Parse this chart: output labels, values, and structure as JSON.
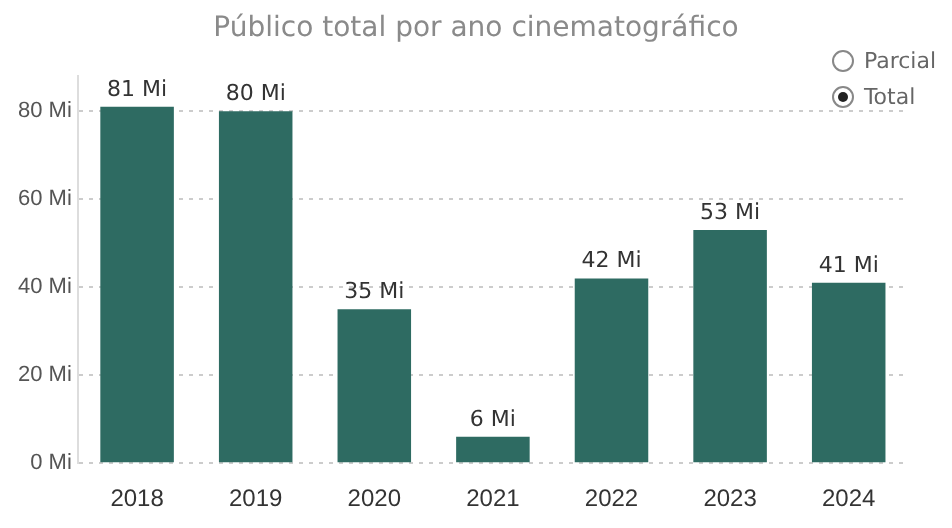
{
  "chart_data": {
    "type": "bar",
    "title": "Público total por ano cinematográfico",
    "categories": [
      "2018",
      "2019",
      "2020",
      "2021",
      "2022",
      "2023",
      "2024"
    ],
    "series": [
      {
        "name": "Total",
        "color": "#2e6b62",
        "values": [
          81,
          80,
          35,
          6,
          42,
          53,
          41
        ],
        "value_labels": [
          "81 Mi",
          "80 Mi",
          "35 Mi",
          "6 Mi",
          "42 Mi",
          "53 Mi",
          "41 Mi"
        ]
      }
    ],
    "yticks": [
      {
        "value": 0,
        "label": "0 Mi"
      },
      {
        "value": 20,
        "label": "20 Mi"
      },
      {
        "value": 40,
        "label": "40 Mi"
      },
      {
        "value": 60,
        "label": "60 Mi"
      },
      {
        "value": 80,
        "label": "80 Mi"
      }
    ],
    "ylim": [
      0,
      88
    ],
    "grid": "y",
    "legend": "top right",
    "annotations": [
      "Parcial"
    ]
  }
}
